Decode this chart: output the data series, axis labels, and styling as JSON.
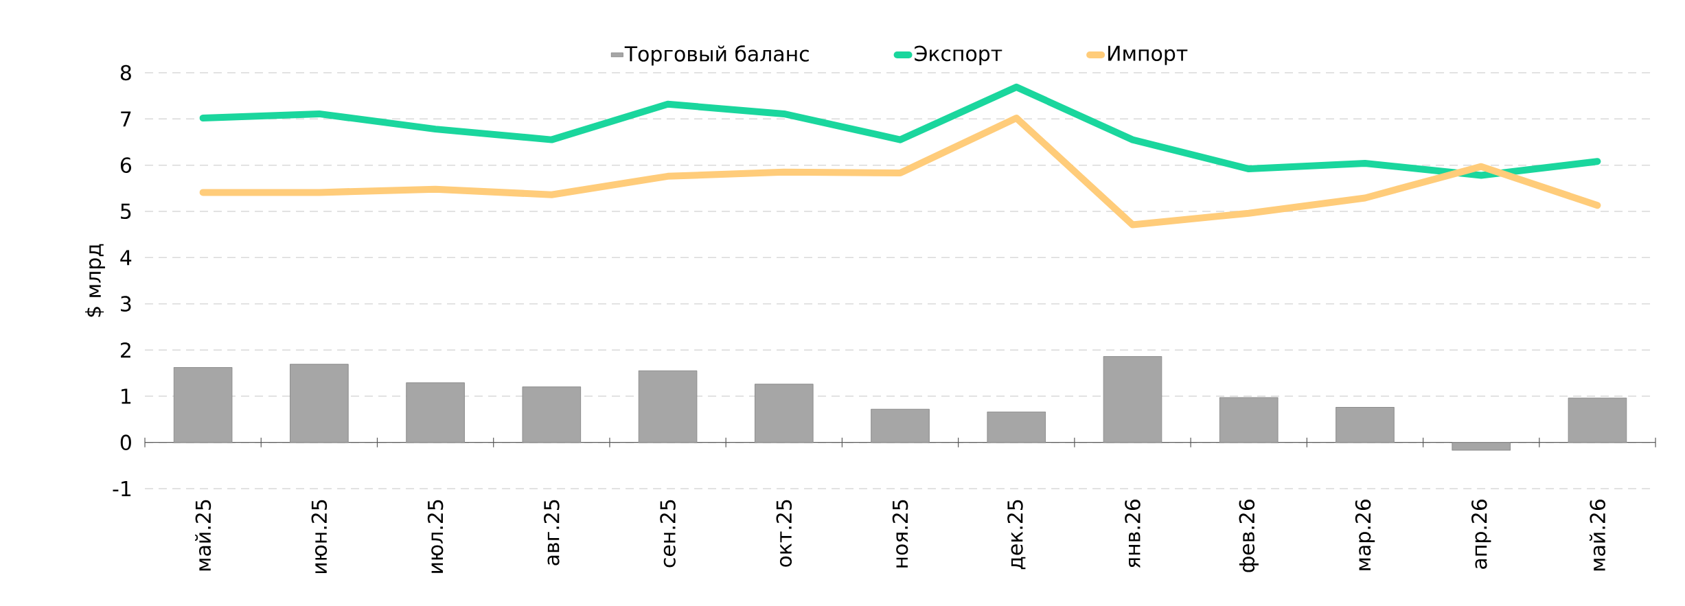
{
  "chart_data": {
    "type": "bar",
    "ylabel": "$ млрд",
    "categories": [
      "май.25",
      "июн.25",
      "июл.25",
      "авг.25",
      "сен.25",
      "окт.25",
      "ноя.25",
      "дек.25",
      "янв.26",
      "фев.26",
      "мар.26",
      "апр.26",
      "май.26"
    ],
    "series": [
      {
        "name": "Торговый баланс",
        "color": "#a6a6a6",
        "values": [
          1.62,
          1.69,
          1.29,
          1.2,
          1.55,
          1.26,
          0.72,
          0.66,
          1.86,
          0.97,
          0.76,
          -0.17,
          0.96
        ]
      },
      {
        "name": "Экспорт",
        "type": "line",
        "color": "#1ad69d",
        "values": [
          7.02,
          7.11,
          6.78,
          6.55,
          7.32,
          7.11,
          6.55,
          7.69,
          6.55,
          5.92,
          6.04,
          5.78,
          6.08
        ]
      },
      {
        "name": "Импорт",
        "type": "line",
        "color": "#ffcc7a",
        "values": [
          5.41,
          5.41,
          5.48,
          5.36,
          5.76,
          5.85,
          5.83,
          7.02,
          4.71,
          4.96,
          5.29,
          5.97,
          5.13
        ]
      }
    ],
    "ylim": [
      -1,
      8
    ],
    "yticks": [
      -1,
      0,
      1,
      2,
      3,
      4,
      5,
      6,
      7,
      8
    ],
    "grid": "y",
    "legend": "top"
  }
}
